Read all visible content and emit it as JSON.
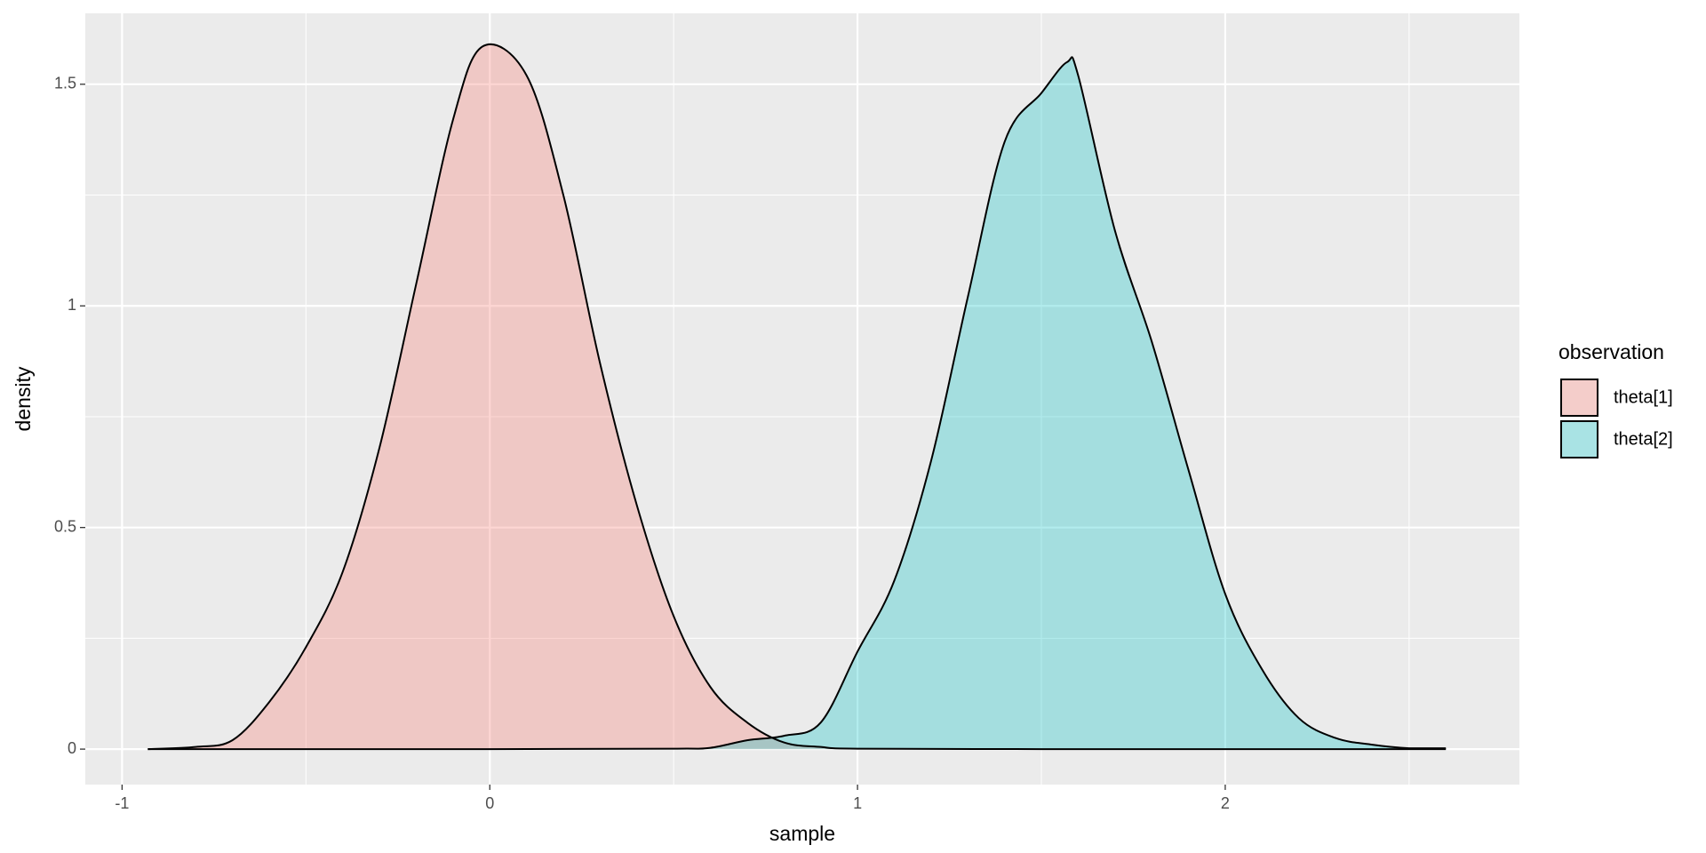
{
  "chart_data": {
    "type": "density",
    "x_label": "sample",
    "y_label": "density",
    "legend_title": "observation",
    "xlim": [
      -1.1,
      2.8
    ],
    "ylim": [
      -0.08,
      1.66
    ],
    "xticks": [
      -1,
      0,
      1,
      2
    ],
    "yticks": [
      0.0,
      0.5,
      1.0,
      1.5
    ],
    "x_minor_ticks": [
      -0.5,
      0.5,
      1.5,
      2.5
    ],
    "y_minor_ticks": [
      0.25,
      0.75,
      1.25
    ],
    "grid": true,
    "fill_alpha": 0.3,
    "legend_position": "right",
    "series": [
      {
        "name": "theta[1]",
        "color": "#F8766D",
        "x": [
          -0.93,
          -0.8,
          -0.7,
          -0.6,
          -0.5,
          -0.4,
          -0.3,
          -0.2,
          -0.1,
          -0.02,
          0.1,
          0.2,
          0.3,
          0.4,
          0.5,
          0.6,
          0.7,
          0.8,
          0.9,
          1.0,
          1.5,
          2.0,
          2.6
        ],
        "values": [
          0.0,
          0.005,
          0.02,
          0.106,
          0.23,
          0.4,
          0.68,
          1.05,
          1.42,
          1.585,
          1.52,
          1.25,
          0.87,
          0.55,
          0.3,
          0.14,
          0.06,
          0.015,
          0.005,
          0.001,
          0.0,
          0.0,
          0.0
        ]
      },
      {
        "name": "theta[2]",
        "color": "#00BFC4",
        "x": [
          -0.93,
          0.0,
          0.5,
          0.6,
          0.7,
          0.8,
          0.9,
          1.0,
          1.1,
          1.2,
          1.3,
          1.4,
          1.5,
          1.57,
          1.6,
          1.7,
          1.8,
          1.9,
          2.0,
          2.1,
          2.2,
          2.3,
          2.4,
          2.5,
          2.6
        ],
        "values": [
          0.0,
          0.0,
          0.001,
          0.003,
          0.02,
          0.03,
          0.06,
          0.22,
          0.38,
          0.65,
          1.02,
          1.37,
          1.48,
          1.55,
          1.52,
          1.17,
          0.92,
          0.63,
          0.35,
          0.18,
          0.07,
          0.025,
          0.01,
          0.002,
          0.002
        ]
      }
    ]
  }
}
